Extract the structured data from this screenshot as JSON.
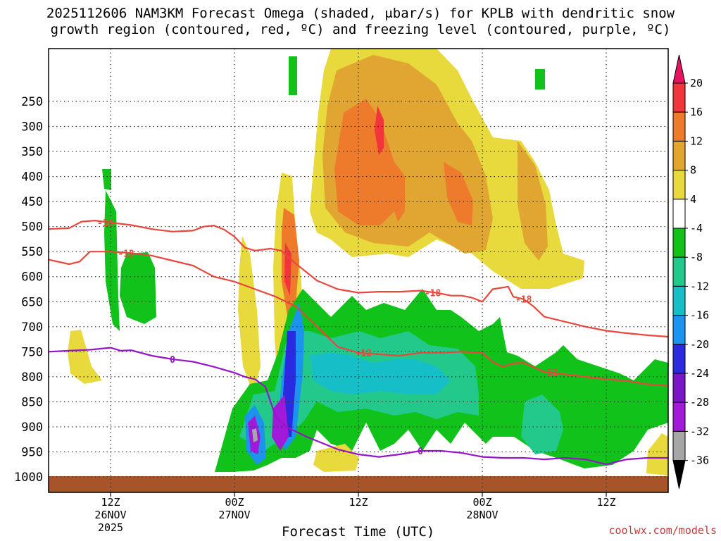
{
  "title_line1": "2025112606 NAM3KM Forecast Omega (shaded, μbar/s) for KPLB with dendritic snow",
  "title_line2": "growth region (contoured, red, ºC) and freezing level (contoured, purple, ºC)",
  "x_axis_title": "Forecast Time (UTC)",
  "credit": "coolwx.com/models",
  "chart_data": {
    "type": "time-height cross-section",
    "title": "2025112606 NAM3KM Forecast Omega (shaded, μbar/s) for KPLB with dendritic snow growth region (contoured, red, ºC) and freezing level (contoured, purple, ºC)",
    "xlabel": "Forecast Time (UTC)",
    "ylabel": "",
    "y_scale": "log-pressure (inverted)",
    "y_ticks": [
      250,
      300,
      350,
      400,
      450,
      500,
      550,
      600,
      650,
      700,
      750,
      800,
      850,
      900,
      950,
      1000
    ],
    "x_ticks": [
      {
        "label": "12Z",
        "sub1": "26NOV",
        "sub2": "2025",
        "hour": 6
      },
      {
        "label": "00Z",
        "sub1": "27NOV",
        "sub2": "",
        "hour": 18
      },
      {
        "label": "12Z",
        "sub1": "",
        "sub2": "",
        "hour": 30
      },
      {
        "label": "00Z",
        "sub1": "28NOV",
        "sub2": "",
        "hour": 42
      },
      {
        "label": "12Z",
        "sub1": "",
        "sub2": "",
        "hour": 54
      }
    ],
    "x_range_hours": [
      0,
      60
    ],
    "colorbar": {
      "labels": [
        "20",
        "16",
        "12",
        "8",
        "4",
        "-4",
        "-8",
        "-12",
        "-16",
        "-20",
        "-24",
        "-28",
        "-32",
        "-36"
      ],
      "colors": [
        "#e8135f",
        "#f2343b",
        "#ee7a2c",
        "#e1a532",
        "#e8d93c",
        "#ffffff",
        "#11c21b",
        "#22c98a",
        "#16bfc8",
        "#1b93ef",
        "#2b2ae0",
        "#7a16c8",
        "#a21ad9",
        "#a6a6a6",
        "#000000"
      ]
    },
    "contour_labels": {
      "red": [
        "-18",
        "-12",
        "-18",
        "-12",
        "-18",
        "-12"
      ],
      "purple": [
        "0",
        "0"
      ]
    },
    "series": [
      {
        "name": "-18",
        "color": "#e8473e",
        "points": [
          [
            0,
            505
          ],
          [
            2,
            503
          ],
          [
            3.2,
            490
          ],
          [
            4.5,
            488
          ],
          [
            6,
            492
          ],
          [
            8,
            497
          ],
          [
            10,
            505
          ],
          [
            12,
            510
          ],
          [
            14,
            508
          ],
          [
            15,
            500
          ],
          [
            16,
            498
          ],
          [
            17,
            506
          ],
          [
            18,
            520
          ],
          [
            19,
            542
          ],
          [
            20,
            548
          ],
          [
            21.5,
            544
          ],
          [
            22.5,
            548
          ],
          [
            24,
            575
          ],
          [
            26,
            608
          ],
          [
            28,
            625
          ],
          [
            30,
            632
          ],
          [
            32,
            630
          ],
          [
            34,
            630
          ],
          [
            36,
            628
          ],
          [
            37.5,
            632
          ],
          [
            39,
            638
          ],
          [
            40,
            638
          ],
          [
            41,
            642
          ],
          [
            42,
            650
          ],
          [
            43,
            625
          ],
          [
            44.5,
            620
          ],
          [
            45,
            640
          ],
          [
            46,
            645
          ],
          [
            47,
            660
          ],
          [
            48,
            680
          ],
          [
            50,
            690
          ],
          [
            52,
            700
          ],
          [
            54,
            708
          ],
          [
            56,
            713
          ],
          [
            58,
            717
          ],
          [
            60,
            720
          ]
        ]
      },
      {
        "name": "-12",
        "color": "#e8473e",
        "points": [
          [
            0,
            566
          ],
          [
            2,
            575
          ],
          [
            3,
            570
          ],
          [
            4,
            550
          ],
          [
            6,
            550
          ],
          [
            8,
            553
          ],
          [
            10,
            558
          ],
          [
            12,
            568
          ],
          [
            14,
            578
          ],
          [
            16,
            600
          ],
          [
            18,
            610
          ],
          [
            20,
            625
          ],
          [
            22,
            640
          ],
          [
            24,
            660
          ],
          [
            26,
            700
          ],
          [
            28,
            740
          ],
          [
            30,
            752
          ],
          [
            32,
            755
          ],
          [
            34,
            758
          ],
          [
            36,
            752
          ],
          [
            38,
            752
          ],
          [
            40,
            750
          ],
          [
            42,
            752
          ],
          [
            43,
            770
          ],
          [
            44,
            780
          ],
          [
            45,
            773
          ],
          [
            46,
            772
          ],
          [
            48,
            790
          ],
          [
            50,
            795
          ],
          [
            52,
            800
          ],
          [
            54,
            805
          ],
          [
            56,
            808
          ],
          [
            58,
            815
          ],
          [
            60,
            818
          ]
        ]
      },
      {
        "name": "0",
        "color": "#9516c5",
        "points": [
          [
            0,
            750
          ],
          [
            2,
            748
          ],
          [
            4,
            746
          ],
          [
            6,
            742
          ],
          [
            7,
            748
          ],
          [
            8,
            747
          ],
          [
            10,
            758
          ],
          [
            12,
            765
          ],
          [
            14,
            770
          ],
          [
            16,
            780
          ],
          [
            18,
            792
          ],
          [
            19,
            800
          ],
          [
            20,
            805
          ],
          [
            21,
            820
          ],
          [
            22,
            880
          ],
          [
            23,
            900
          ],
          [
            25,
            920
          ],
          [
            28,
            945
          ],
          [
            30,
            955
          ],
          [
            32,
            960
          ],
          [
            34,
            955
          ],
          [
            36,
            948
          ],
          [
            38,
            948
          ],
          [
            40,
            952
          ],
          [
            42,
            960
          ],
          [
            44,
            962
          ],
          [
            46,
            962
          ],
          [
            48,
            965
          ],
          [
            50,
            962
          ],
          [
            52,
            965
          ],
          [
            54,
            975
          ],
          [
            56,
            965
          ],
          [
            58,
            962
          ],
          [
            60,
            962
          ]
        ]
      }
    ]
  }
}
